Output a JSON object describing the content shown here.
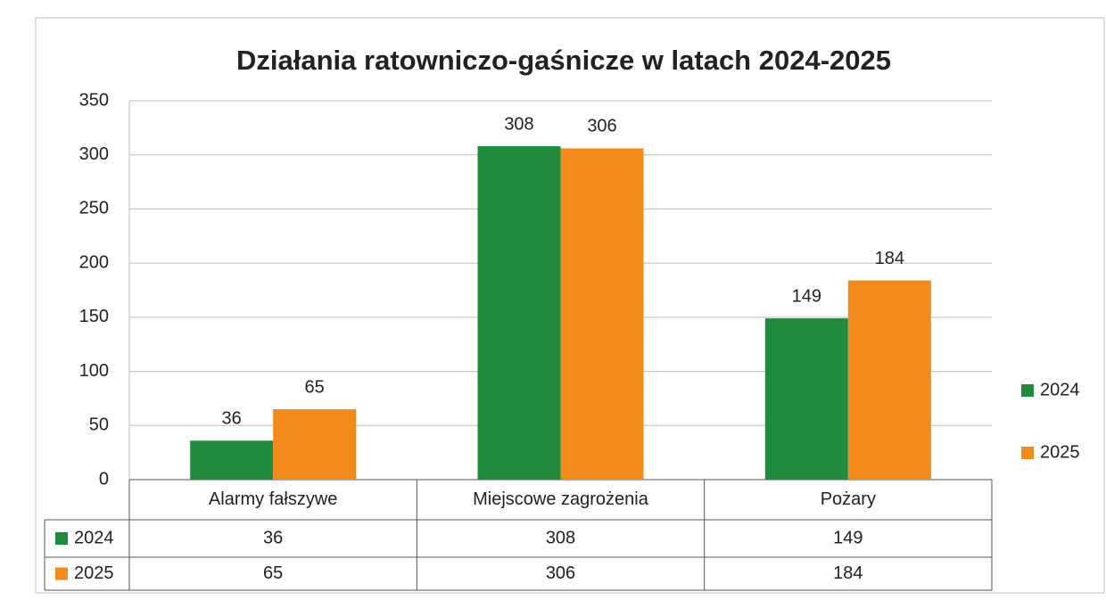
{
  "chart_data": {
    "type": "bar",
    "title": "Działania ratowniczo-gaśnicze w latach 2024-2025",
    "categories": [
      "Alarmy fałszywe",
      "Miejscowe zagrożenia",
      "Pożary"
    ],
    "series": [
      {
        "name": "2024",
        "color": "#1e8c3c",
        "values": [
          36,
          308,
          149
        ]
      },
      {
        "name": "2025",
        "color": "#f28a1c",
        "values": [
          65,
          306,
          184
        ]
      }
    ],
    "ylim": [
      0,
      350
    ],
    "yticks": [
      0,
      50,
      100,
      150,
      200,
      250,
      300,
      350
    ],
    "grid": true,
    "legend": "right",
    "data_table": true
  }
}
